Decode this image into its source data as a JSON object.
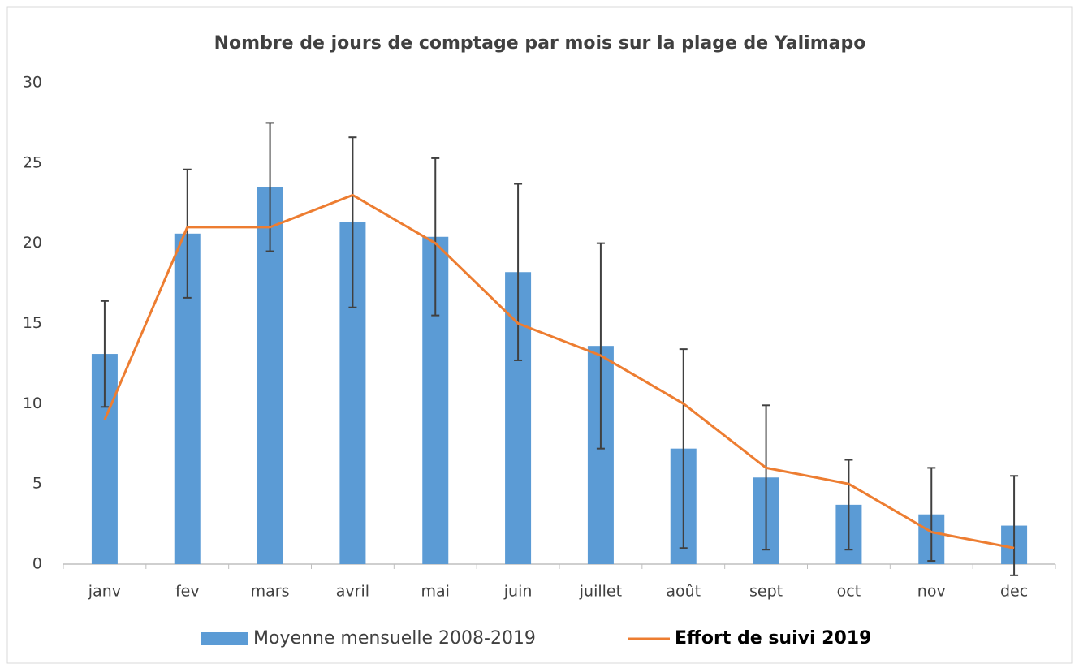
{
  "chart_data": {
    "type": "bar_line",
    "title": "Nombre de jours de comptage par mois sur la plage de Yalimapo",
    "categories": [
      "janv",
      "fev",
      "mars",
      "avril",
      "mai",
      "juin",
      "juillet",
      "août",
      "sept",
      "oct",
      "nov",
      "dec"
    ],
    "series": [
      {
        "name": "Moyenne mensuelle 2008-2019",
        "type": "bar",
        "color": "#5b9bd5",
        "values": [
          13.1,
          20.6,
          23.5,
          21.3,
          20.4,
          18.2,
          13.6,
          7.2,
          5.4,
          3.7,
          3.1,
          2.4
        ],
        "errors": [
          3.3,
          4.0,
          4.0,
          5.3,
          4.9,
          5.5,
          6.4,
          6.2,
          4.5,
          2.8,
          2.9,
          3.1
        ]
      },
      {
        "name": "Effort de suivi 2019",
        "type": "line",
        "color": "#ed7d31",
        "values": [
          9,
          21,
          21,
          23,
          20,
          15,
          13,
          10,
          6,
          5,
          2,
          1
        ]
      }
    ],
    "ylim": [
      0,
      30
    ],
    "yticks": [
      0,
      5,
      10,
      15,
      20,
      25,
      30
    ],
    "grid": false,
    "legend": "bottom"
  }
}
